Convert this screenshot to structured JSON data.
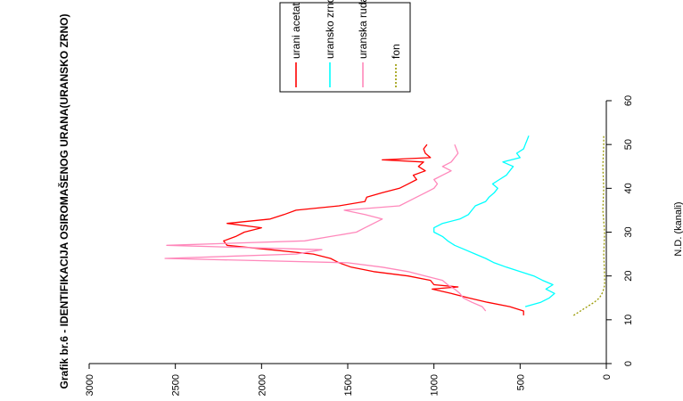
{
  "chart_data": {
    "type": "line",
    "orientation": "rotated-90-ccw",
    "title": "Grafik br.6 - IDENTIFIKACIJA OSIROMAŠENOG URANA(URANSKO ZRNO)",
    "xlabel": "N.D. (kanali)",
    "ylabel": "",
    "xlim": [
      0,
      60
    ],
    "ylim": [
      0,
      3000
    ],
    "x_ticks": [
      "0",
      "10",
      "20",
      "30",
      "40",
      "50",
      "60"
    ],
    "y_ticks": [
      "0",
      "500",
      "1000",
      "1500",
      "2000",
      "2500",
      "3000"
    ],
    "legend_position": "top-right",
    "series": [
      {
        "name": "urani acetat",
        "color": "#ff0000",
        "style": "solid",
        "x": [
          11,
          12,
          13,
          14,
          15,
          16,
          17,
          17.5,
          18,
          19,
          20,
          21,
          22,
          23,
          24,
          25,
          26,
          27,
          28,
          29,
          30,
          31,
          32,
          33,
          34,
          35,
          36,
          37,
          38,
          39,
          40,
          41,
          42,
          43,
          44,
          45,
          46,
          46.5,
          47,
          48,
          49,
          50
        ],
        "y": [
          480,
          480,
          560,
          690,
          800,
          900,
          1010,
          860,
          1000,
          1020,
          1150,
          1350,
          1480,
          1550,
          1600,
          1700,
          1950,
          2200,
          2220,
          2150,
          2100,
          2000,
          2200,
          1950,
          1870,
          1800,
          1550,
          1400,
          1390,
          1300,
          1200,
          1150,
          1100,
          1120,
          1050,
          1090,
          1060,
          1300,
          1020,
          1050,
          1060,
          1040
        ]
      },
      {
        "name": "uransko zrno",
        "color": "#00ffff",
        "style": "solid",
        "x": [
          13,
          14,
          15,
          16,
          17,
          18,
          19,
          20,
          21,
          22,
          23,
          24,
          25,
          26,
          27,
          28,
          29,
          30,
          31,
          32,
          33,
          34,
          35,
          36,
          37,
          38,
          39,
          40,
          41,
          42,
          43,
          44,
          45,
          46,
          47,
          48,
          49,
          50,
          51,
          52
        ],
        "y": [
          470,
          380,
          330,
          300,
          350,
          310,
          370,
          420,
          500,
          580,
          650,
          700,
          760,
          820,
          880,
          920,
          950,
          1000,
          1000,
          950,
          850,
          800,
          780,
          760,
          700,
          680,
          650,
          630,
          660,
          620,
          580,
          560,
          540,
          600,
          500,
          520,
          480,
          470,
          460,
          450
        ]
      },
      {
        "name": "uranska ruda",
        "color": "#ff88bb",
        "style": "solid",
        "x": [
          12,
          13,
          14,
          15,
          16,
          17,
          18,
          19,
          20,
          21,
          22,
          23,
          24,
          25,
          26,
          27,
          28,
          29,
          30,
          31,
          32,
          33,
          34,
          35,
          36,
          37,
          38,
          39,
          40,
          41,
          42,
          43,
          44,
          45,
          46,
          47,
          48,
          49,
          50
        ],
        "y": [
          700,
          720,
          780,
          830,
          850,
          880,
          920,
          950,
          1050,
          1150,
          1300,
          1500,
          2560,
          1800,
          1650,
          2550,
          1750,
          1600,
          1450,
          1400,
          1350,
          1300,
          1400,
          1520,
          1200,
          1150,
          1100,
          1050,
          1000,
          980,
          1000,
          950,
          900,
          950,
          900,
          880,
          860,
          870,
          880
        ]
      },
      {
        "name": "fon",
        "color": "#999900",
        "style": "dotted",
        "x": [
          11,
          12,
          13,
          14,
          15,
          16,
          17,
          18,
          20,
          25,
          30,
          35,
          40,
          45,
          50,
          52
        ],
        "y": [
          190,
          150,
          110,
          70,
          40,
          25,
          15,
          10,
          10,
          15,
          10,
          20,
          15,
          20,
          15,
          15
        ]
      }
    ]
  }
}
